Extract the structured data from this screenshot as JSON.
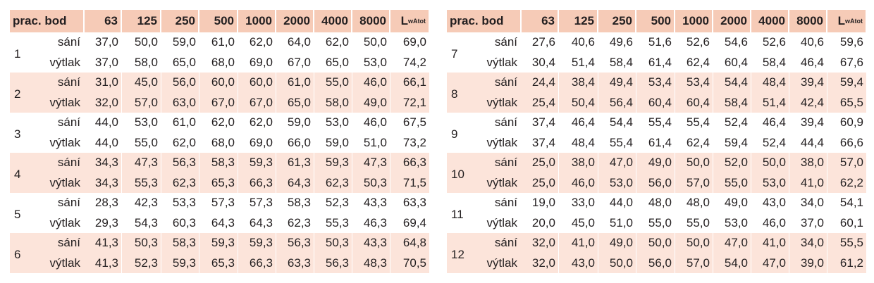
{
  "tables": [
    {
      "header": [
        "prac. bod",
        "63",
        "125",
        "250",
        "500",
        "1000",
        "2000",
        "4000",
        "8000",
        {
          "main": "L",
          "sub": "wAtot"
        }
      ],
      "groups": [
        {
          "label": "1",
          "rows": [
            {
              "mode": "sání",
              "values": [
                "37,0",
                "50,0",
                "59,0",
                "61,0",
                "62,0",
                "64,0",
                "62,0",
                "50,0",
                "69,0"
              ]
            },
            {
              "mode": "výtlak",
              "values": [
                "37,0",
                "58,0",
                "65,0",
                "68,0",
                "69,0",
                "67,0",
                "65,0",
                "53,0",
                "74,2"
              ]
            }
          ]
        },
        {
          "label": "2",
          "rows": [
            {
              "mode": "sání",
              "values": [
                "31,0",
                "45,0",
                "56,0",
                "60,0",
                "60,0",
                "61,0",
                "55,0",
                "46,0",
                "66,1"
              ]
            },
            {
              "mode": "výtlak",
              "values": [
                "32,0",
                "57,0",
                "63,0",
                "67,0",
                "67,0",
                "65,0",
                "58,0",
                "49,0",
                "72,1"
              ]
            }
          ]
        },
        {
          "label": "3",
          "rows": [
            {
              "mode": "sání",
              "values": [
                "44,0",
                "53,0",
                "61,0",
                "62,0",
                "62,0",
                "59,0",
                "53,0",
                "46,0",
                "67,5"
              ]
            },
            {
              "mode": "výtlak",
              "values": [
                "44,0",
                "55,0",
                "62,0",
                "68,0",
                "69,0",
                "66,0",
                "59,0",
                "51,0",
                "73,2"
              ]
            }
          ]
        },
        {
          "label": "4",
          "rows": [
            {
              "mode": "sání",
              "values": [
                "34,3",
                "47,3",
                "56,3",
                "58,3",
                "59,3",
                "61,3",
                "59,3",
                "47,3",
                "66,3"
              ]
            },
            {
              "mode": "výtlak",
              "values": [
                "34,3",
                "55,3",
                "62,3",
                "65,3",
                "66,3",
                "64,3",
                "62,3",
                "50,3",
                "71,5"
              ]
            }
          ]
        },
        {
          "label": "5",
          "rows": [
            {
              "mode": "sání",
              "values": [
                "28,3",
                "42,3",
                "53,3",
                "57,3",
                "57,3",
                "58,3",
                "52,3",
                "43,3",
                "63,3"
              ]
            },
            {
              "mode": "výtlak",
              "values": [
                "29,3",
                "54,3",
                "60,3",
                "64,3",
                "64,3",
                "62,3",
                "55,3",
                "46,3",
                "69,4"
              ]
            }
          ]
        },
        {
          "label": "6",
          "rows": [
            {
              "mode": "sání",
              "values": [
                "41,3",
                "50,3",
                "58,3",
                "59,3",
                "59,3",
                "56,3",
                "50,3",
                "43,3",
                "64,8"
              ]
            },
            {
              "mode": "výtlak",
              "values": [
                "41,3",
                "52,3",
                "59,3",
                "65,3",
                "66,3",
                "63,3",
                "56,3",
                "48,3",
                "70,5"
              ]
            }
          ]
        }
      ]
    },
    {
      "header": [
        "prac. bod",
        "63",
        "125",
        "250",
        "500",
        "1000",
        "2000",
        "4000",
        "8000",
        {
          "main": "L",
          "sub": "wAtot"
        }
      ],
      "groups": [
        {
          "label": "7",
          "rows": [
            {
              "mode": "sání",
              "values": [
                "27,6",
                "40,6",
                "49,6",
                "51,6",
                "52,6",
                "54,6",
                "52,6",
                "40,6",
                "59,6"
              ]
            },
            {
              "mode": "výtlak",
              "values": [
                "30,4",
                "51,4",
                "58,4",
                "61,4",
                "62,4",
                "60,4",
                "58,4",
                "46,4",
                "67,6"
              ]
            }
          ]
        },
        {
          "label": "8",
          "rows": [
            {
              "mode": "sání",
              "values": [
                "24,4",
                "38,4",
                "49,4",
                "53,4",
                "53,4",
                "54,4",
                "48,4",
                "39,4",
                "59,4"
              ]
            },
            {
              "mode": "výtlak",
              "values": [
                "25,4",
                "50,4",
                "56,4",
                "60,4",
                "60,4",
                "58,4",
                "51,4",
                "42,4",
                "65,5"
              ]
            }
          ]
        },
        {
          "label": "9",
          "rows": [
            {
              "mode": "sání",
              "values": [
                "37,4",
                "46,4",
                "54,4",
                "55,4",
                "55,4",
                "52,4",
                "46,4",
                "39,4",
                "60,9"
              ]
            },
            {
              "mode": "výtlak",
              "values": [
                "37,4",
                "48,4",
                "55,4",
                "61,4",
                "62,4",
                "59,4",
                "52,4",
                "44,4",
                "66,6"
              ]
            }
          ]
        },
        {
          "label": "10",
          "rows": [
            {
              "mode": "sání",
              "values": [
                "25,0",
                "38,0",
                "47,0",
                "49,0",
                "50,0",
                "52,0",
                "50,0",
                "38,0",
                "57,0"
              ]
            },
            {
              "mode": "výtlak",
              "values": [
                "25,0",
                "46,0",
                "53,0",
                "56,0",
                "57,0",
                "55,0",
                "53,0",
                "41,0",
                "62,2"
              ]
            }
          ]
        },
        {
          "label": "11",
          "rows": [
            {
              "mode": "sání",
              "values": [
                "19,0",
                "33,0",
                "44,0",
                "48,0",
                "48,0",
                "49,0",
                "43,0",
                "34,0",
                "54,1"
              ]
            },
            {
              "mode": "výtlak",
              "values": [
                "20,0",
                "45,0",
                "51,0",
                "55,0",
                "55,0",
                "53,0",
                "46,0",
                "37,0",
                "60,1"
              ]
            }
          ]
        },
        {
          "label": "12",
          "rows": [
            {
              "mode": "sání",
              "values": [
                "32,0",
                "41,0",
                "49,0",
                "50,0",
                "50,0",
                "47,0",
                "41,0",
                "34,0",
                "55,5"
              ]
            },
            {
              "mode": "výtlak",
              "values": [
                "32,0",
                "43,0",
                "50,0",
                "56,0",
                "57,0",
                "54,0",
                "47,0",
                "39,0",
                "61,2"
              ]
            }
          ]
        }
      ]
    }
  ]
}
